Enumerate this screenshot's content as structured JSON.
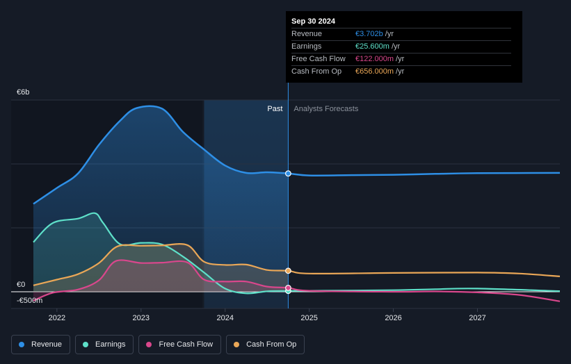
{
  "chart_data": {
    "type": "area",
    "y_axis": {
      "top_label": "€6b",
      "zero_label": "€0",
      "bottom_label": "-€500m",
      "ylim": [
        -500,
        6000
      ]
    },
    "x_ticks": [
      "2022",
      "2023",
      "2024",
      "2025",
      "2026",
      "2027"
    ],
    "x_range": [
      2021.72,
      2027.98
    ],
    "past_start": 2023.75,
    "past_end": 2024.75,
    "region_labels": {
      "past": "Past",
      "forecast": "Analysts Forecasts"
    },
    "series": [
      {
        "name": "Revenue",
        "color": "#2e8fe6",
        "points": [
          [
            2021.72,
            2750
          ],
          [
            2022.0,
            3250
          ],
          [
            2022.25,
            3700
          ],
          [
            2022.5,
            4600
          ],
          [
            2022.75,
            5350
          ],
          [
            2022.95,
            5750
          ],
          [
            2023.25,
            5730
          ],
          [
            2023.5,
            5000
          ],
          [
            2023.75,
            4450
          ],
          [
            2024.0,
            3950
          ],
          [
            2024.25,
            3720
          ],
          [
            2024.5,
            3740
          ],
          [
            2024.75,
            3702
          ],
          [
            2025.0,
            3640
          ],
          [
            2025.5,
            3650
          ],
          [
            2026.0,
            3660
          ],
          [
            2026.5,
            3690
          ],
          [
            2027.0,
            3710
          ],
          [
            2027.98,
            3720
          ]
        ]
      },
      {
        "name": "Earnings",
        "color": "#5ee0c9",
        "points": [
          [
            2021.72,
            1550
          ],
          [
            2021.95,
            2150
          ],
          [
            2022.25,
            2290
          ],
          [
            2022.45,
            2460
          ],
          [
            2022.55,
            2150
          ],
          [
            2022.75,
            1490
          ],
          [
            2023.0,
            1530
          ],
          [
            2023.25,
            1480
          ],
          [
            2023.5,
            1100
          ],
          [
            2023.75,
            600
          ],
          [
            2024.0,
            100
          ],
          [
            2024.25,
            -50
          ],
          [
            2024.5,
            15
          ],
          [
            2024.75,
            25.6
          ],
          [
            2025.0,
            30
          ],
          [
            2026.0,
            50
          ],
          [
            2026.5,
            80
          ],
          [
            2027.0,
            100
          ],
          [
            2027.98,
            20
          ]
        ]
      },
      {
        "name": "Free Cash Flow",
        "color": "#d9478c",
        "points": [
          [
            2021.72,
            -280
          ],
          [
            2021.95,
            -30
          ],
          [
            2022.25,
            70
          ],
          [
            2022.5,
            360
          ],
          [
            2022.7,
            960
          ],
          [
            2023.0,
            900
          ],
          [
            2023.25,
            910
          ],
          [
            2023.55,
            920
          ],
          [
            2023.75,
            380
          ],
          [
            2024.0,
            320
          ],
          [
            2024.25,
            320
          ],
          [
            2024.5,
            160
          ],
          [
            2024.75,
            122
          ],
          [
            2025.0,
            30
          ],
          [
            2026.0,
            0
          ],
          [
            2026.5,
            10
          ],
          [
            2027.0,
            -20
          ],
          [
            2027.5,
            -100
          ],
          [
            2027.98,
            -300
          ]
        ]
      },
      {
        "name": "Cash From Op",
        "color": "#eaa757",
        "points": [
          [
            2021.72,
            200
          ],
          [
            2022.0,
            380
          ],
          [
            2022.25,
            550
          ],
          [
            2022.5,
            900
          ],
          [
            2022.72,
            1420
          ],
          [
            2023.0,
            1440
          ],
          [
            2023.25,
            1450
          ],
          [
            2023.55,
            1460
          ],
          [
            2023.75,
            940
          ],
          [
            2024.0,
            840
          ],
          [
            2024.25,
            850
          ],
          [
            2024.5,
            680
          ],
          [
            2024.75,
            656
          ],
          [
            2025.0,
            570
          ],
          [
            2026.0,
            590
          ],
          [
            2027.0,
            600
          ],
          [
            2027.5,
            570
          ],
          [
            2027.98,
            480
          ]
        ]
      }
    ]
  },
  "tooltip": {
    "date": "Sep 30 2024",
    "rows": [
      {
        "name": "Revenue",
        "value": "€3.702b",
        "unit": "/yr",
        "color": "#2e8fe6"
      },
      {
        "name": "Earnings",
        "value": "€25.600m",
        "unit": "/yr",
        "color": "#5ee0c9"
      },
      {
        "name": "Free Cash Flow",
        "value": "€122.000m",
        "unit": "/yr",
        "color": "#d9478c"
      },
      {
        "name": "Cash From Op",
        "value": "€656.000m",
        "unit": "/yr",
        "color": "#eaa757"
      }
    ]
  },
  "legend": [
    {
      "label": "Revenue",
      "color": "#2e8fe6"
    },
    {
      "label": "Earnings",
      "color": "#5ee0c9"
    },
    {
      "label": "Free Cash Flow",
      "color": "#d9478c"
    },
    {
      "label": "Cash From Op",
      "color": "#eaa757"
    }
  ]
}
